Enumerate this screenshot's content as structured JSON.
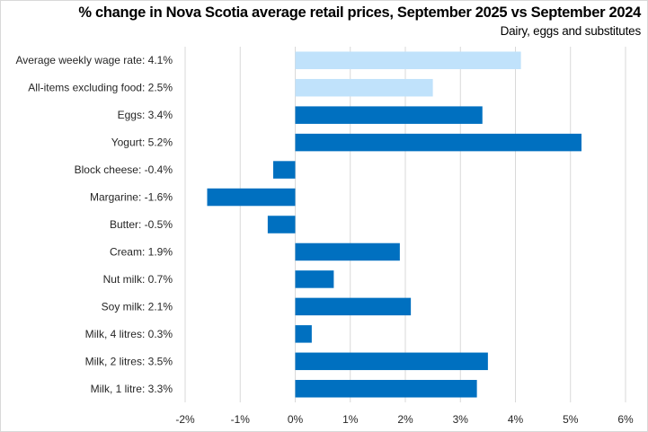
{
  "chart_data": {
    "type": "bar",
    "orientation": "horizontal",
    "title": "% change in Nova Scotia average retail prices, September 2025 vs September 2024",
    "subtitle": "Dairy, eggs and substitutes",
    "xlabel": "",
    "ylabel": "",
    "xlim": [
      -2,
      6
    ],
    "xticks": [
      -2,
      -1,
      0,
      1,
      2,
      3,
      4,
      5,
      6
    ],
    "xtick_labels": [
      "-2%",
      "-1%",
      "0%",
      "1%",
      "2%",
      "3%",
      "4%",
      "5%",
      "6%"
    ],
    "grid": "vertical",
    "legend": "none",
    "categories": [
      "Average weekly wage rate: 4.1%",
      "All-items excluding food: 2.5%",
      "Eggs: 3.4%",
      "Yogurt: 5.2%",
      "Block cheese: -0.4%",
      "Margarine: -1.6%",
      "Butter: -0.5%",
      "Cream: 1.9%",
      "Nut milk: 0.7%",
      "Soy milk: 2.1%",
      "Milk, 4 litres: 0.3%",
      "Milk, 2 litres: 3.5%",
      "Milk, 1 litre: 3.3%"
    ],
    "values": [
      4.1,
      2.5,
      3.4,
      5.2,
      -0.4,
      -1.6,
      -0.5,
      1.9,
      0.7,
      2.1,
      0.3,
      3.5,
      3.3
    ],
    "bar_kinds": [
      "reference",
      "reference",
      "item",
      "item",
      "item",
      "item",
      "item",
      "item",
      "item",
      "item",
      "item",
      "item",
      "item"
    ],
    "colors": {
      "reference": "#c0e2fb",
      "item": "#0070c0",
      "grid": "#d9d9d9"
    }
  }
}
